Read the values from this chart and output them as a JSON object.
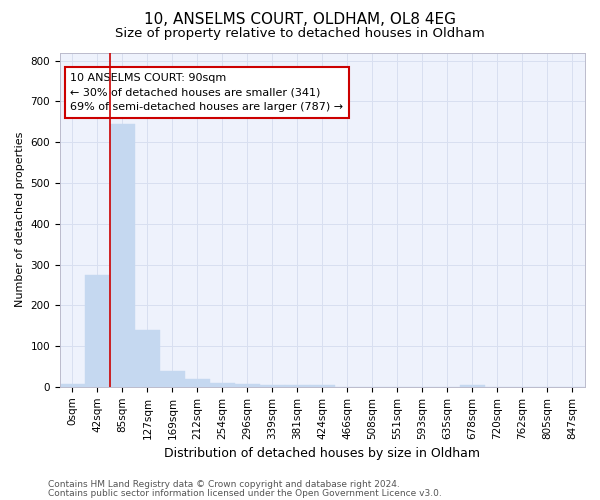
{
  "title1": "10, ANSELMS COURT, OLDHAM, OL8 4EG",
  "title2": "Size of property relative to detached houses in Oldham",
  "xlabel": "Distribution of detached houses by size in Oldham",
  "ylabel": "Number of detached properties",
  "bar_labels": [
    "0sqm",
    "42sqm",
    "85sqm",
    "127sqm",
    "169sqm",
    "212sqm",
    "254sqm",
    "296sqm",
    "339sqm",
    "381sqm",
    "424sqm",
    "466sqm",
    "508sqm",
    "551sqm",
    "593sqm",
    "635sqm",
    "678sqm",
    "720sqm",
    "762sqm",
    "805sqm",
    "847sqm"
  ],
  "bar_values": [
    8,
    275,
    645,
    140,
    38,
    18,
    10,
    8,
    5,
    5,
    5,
    0,
    0,
    0,
    0,
    0,
    5,
    0,
    0,
    0,
    0
  ],
  "bar_color": "#c5d8f0",
  "bar_edge_color": "#c5d8f0",
  "red_line_color": "#cc0000",
  "annotation_text": "10 ANSELMS COURT: 90sqm\n← 30% of detached houses are smaller (341)\n69% of semi-detached houses are larger (787) →",
  "annotation_box_color": "#ffffff",
  "annotation_box_edge": "#cc0000",
  "ylim": [
    0,
    820
  ],
  "yticks": [
    0,
    100,
    200,
    300,
    400,
    500,
    600,
    700,
    800
  ],
  "grid_color": "#d8dff0",
  "background_color": "#ffffff",
  "plot_bg_color": "#eef2fc",
  "footer1": "Contains HM Land Registry data © Crown copyright and database right 2024.",
  "footer2": "Contains public sector information licensed under the Open Government Licence v3.0.",
  "title1_fontsize": 11,
  "title2_fontsize": 9.5,
  "xlabel_fontsize": 9,
  "ylabel_fontsize": 8,
  "tick_fontsize": 7.5,
  "annot_fontsize": 8,
  "footer_fontsize": 6.5
}
